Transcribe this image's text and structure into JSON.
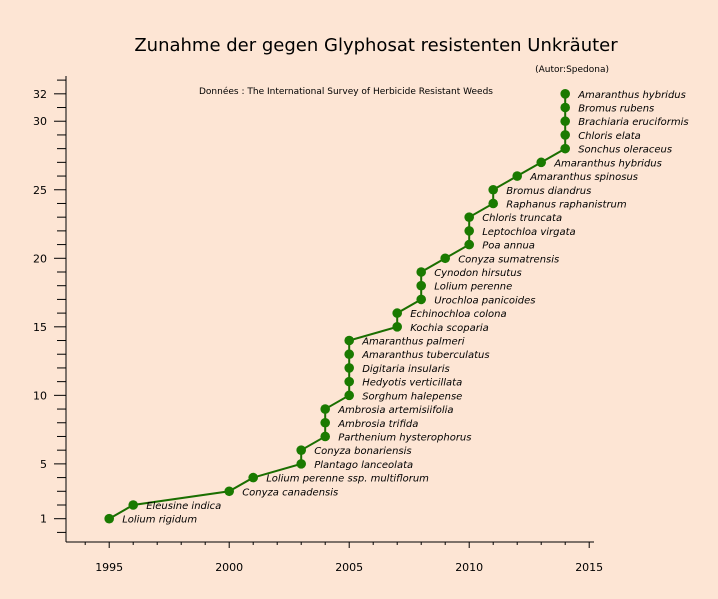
{
  "chart_data": {
    "type": "line",
    "title": "Zunahme der gegen Glyphosat resistenten Unkräuter",
    "author": "(Autor:Spedona)",
    "source": "Données : The  International Survey of Herbicide Resistant Weeds",
    "xlim": [
      1993.2,
      2015.2
    ],
    "ylim": [
      -0.7,
      33.3
    ],
    "x_ticks": [
      1995,
      2000,
      2005,
      2010,
      2015
    ],
    "y_ticks": [
      1,
      5,
      10,
      15,
      20,
      25,
      30,
      32
    ],
    "grid": false,
    "line_color": "#1a6e00",
    "marker_color": "#1a7a00",
    "series": [
      {
        "points": [
          {
            "x": 1995,
            "y": 1,
            "label": "Lolium rigidum"
          },
          {
            "x": 1996,
            "y": 2,
            "label": "Eleusine indica"
          },
          {
            "x": 2000,
            "y": 3,
            "label": "Conyza canadensis"
          },
          {
            "x": 2001,
            "y": 4,
            "label": "Lolium perenne ssp. multiflorum"
          },
          {
            "x": 2003,
            "y": 5,
            "label": "Plantago lanceolata"
          },
          {
            "x": 2003,
            "y": 6,
            "label": "Conyza bonariensis"
          },
          {
            "x": 2004,
            "y": 7,
            "label": "Parthenium hysterophorus"
          },
          {
            "x": 2004,
            "y": 8,
            "label": "Ambrosia trifida"
          },
          {
            "x": 2004,
            "y": 9,
            "label": "Ambrosia artemisiifolia"
          },
          {
            "x": 2005,
            "y": 10,
            "label": "Sorghum halepense"
          },
          {
            "x": 2005,
            "y": 11,
            "label": "Hedyotis verticillata"
          },
          {
            "x": 2005,
            "y": 12,
            "label": "Digitaria insularis"
          },
          {
            "x": 2005,
            "y": 13,
            "label": "Amaranthus tuberculatus"
          },
          {
            "x": 2005,
            "y": 14,
            "label": "Amaranthus palmeri"
          },
          {
            "x": 2007,
            "y": 15,
            "label": "Kochia scoparia"
          },
          {
            "x": 2007,
            "y": 16,
            "label": "Echinochloa colona"
          },
          {
            "x": 2008,
            "y": 17,
            "label": "Urochloa panicoides"
          },
          {
            "x": 2008,
            "y": 18,
            "label": "Lolium perenne"
          },
          {
            "x": 2008,
            "y": 19,
            "label": "Cynodon hirsutus"
          },
          {
            "x": 2009,
            "y": 20,
            "label": "Conyza sumatrensis"
          },
          {
            "x": 2010,
            "y": 21,
            "label": "Poa annua"
          },
          {
            "x": 2010,
            "y": 22,
            "label": "Leptochloa virgata"
          },
          {
            "x": 2010,
            "y": 23,
            "label": "Chloris truncata"
          },
          {
            "x": 2011,
            "y": 24,
            "label": "Raphanus raphanistrum"
          },
          {
            "x": 2011,
            "y": 25,
            "label": "Bromus diandrus"
          },
          {
            "x": 2012,
            "y": 26,
            "label": "Amaranthus spinosus"
          },
          {
            "x": 2013,
            "y": 27,
            "label": "Amaranthus hybridus"
          },
          {
            "x": 2014,
            "y": 28,
            "label": "Sonchus oleraceus"
          },
          {
            "x": 2014,
            "y": 29,
            "label": "Chloris elata"
          },
          {
            "x": 2014,
            "y": 30,
            "label": "Brachiaria eruciformis"
          },
          {
            "x": 2014,
            "y": 31,
            "label": "Bromus rubens"
          },
          {
            "x": 2014,
            "y": 32,
            "label": "Amaranthus hybridus"
          }
        ]
      }
    ]
  }
}
